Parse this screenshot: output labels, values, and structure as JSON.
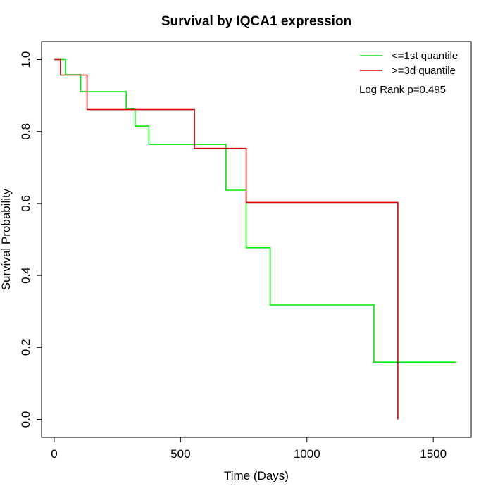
{
  "chart_data": {
    "type": "line",
    "subtype": "kaplan-meier-step",
    "title": "Survival by IQCA1 expression",
    "xlabel": "Time (Days)",
    "ylabel": "Survival Probability",
    "xlim": [
      -50,
      1650
    ],
    "ylim": [
      -0.05,
      1.05
    ],
    "xticks": [
      0,
      500,
      1000,
      1500
    ],
    "yticks": [
      0.0,
      0.2,
      0.4,
      0.6,
      0.8,
      1.0
    ],
    "xtick_labels": [
      "0",
      "500",
      "1000",
      "1500"
    ],
    "ytick_labels": [
      "0.0",
      "0.2",
      "0.4",
      "0.6",
      "0.8",
      "1.0"
    ],
    "grid": false,
    "legend_position": "top-right",
    "annotation": "Log Rank p=0.495",
    "series": [
      {
        "name": "<=1st quantile",
        "color": "#00ee00",
        "points": [
          [
            0,
            1.0
          ],
          [
            45,
            1.0
          ],
          [
            45,
            0.958
          ],
          [
            105,
            0.958
          ],
          [
            105,
            0.911
          ],
          [
            285,
            0.911
          ],
          [
            285,
            0.863
          ],
          [
            320,
            0.863
          ],
          [
            320,
            0.815
          ],
          [
            375,
            0.815
          ],
          [
            375,
            0.764
          ],
          [
            680,
            0.764
          ],
          [
            680,
            0.637
          ],
          [
            760,
            0.637
          ],
          [
            760,
            0.477
          ],
          [
            855,
            0.477
          ],
          [
            855,
            0.318
          ],
          [
            1265,
            0.318
          ],
          [
            1265,
            0.159
          ],
          [
            1590,
            0.159
          ]
        ]
      },
      {
        "name": ">=3d quantile",
        "color": "#dd0000",
        "points": [
          [
            0,
            1.0
          ],
          [
            25,
            1.0
          ],
          [
            25,
            0.957
          ],
          [
            130,
            0.957
          ],
          [
            130,
            0.861
          ],
          [
            555,
            0.861
          ],
          [
            555,
            0.753
          ],
          [
            760,
            0.753
          ],
          [
            760,
            0.603
          ],
          [
            1360,
            0.603
          ],
          [
            1360,
            0.0
          ]
        ]
      }
    ]
  }
}
